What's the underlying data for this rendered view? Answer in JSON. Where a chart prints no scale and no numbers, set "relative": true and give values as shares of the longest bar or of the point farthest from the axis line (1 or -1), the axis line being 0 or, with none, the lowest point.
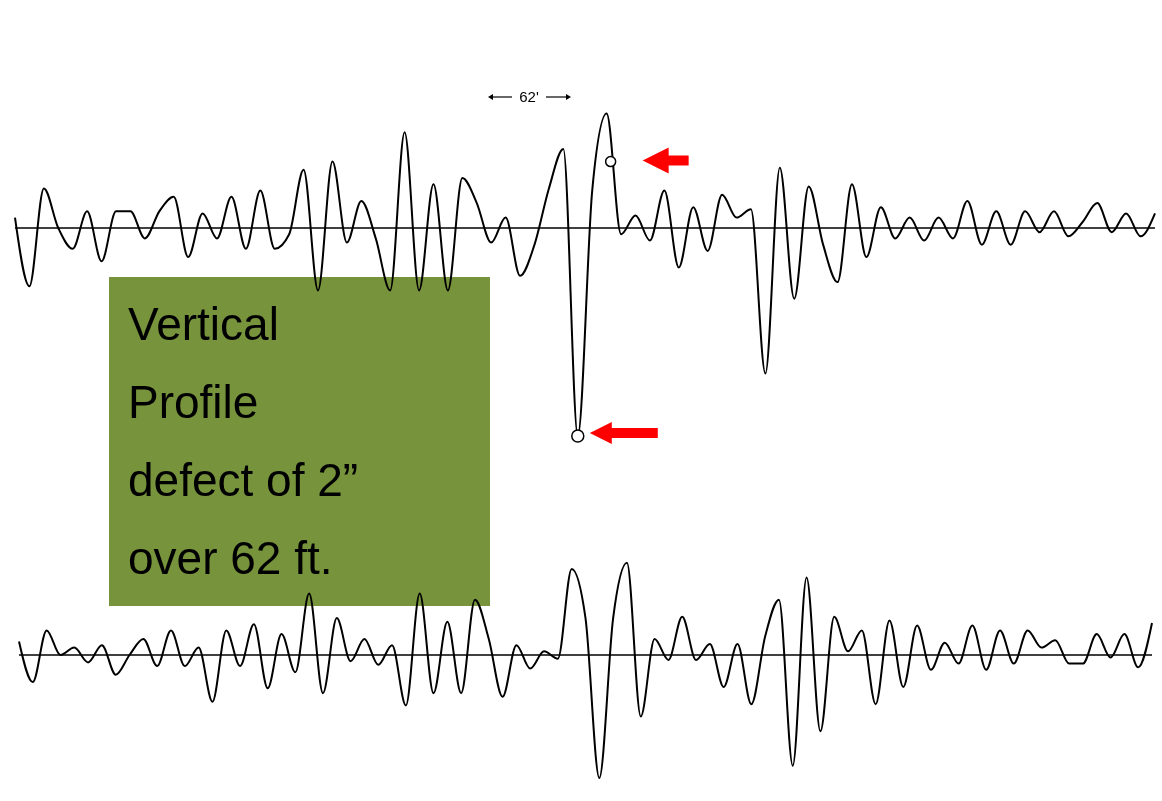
{
  "chart_data": [
    {
      "type": "line",
      "relative": true,
      "annotations": [
        "62'",
        "Vertical Profile defect of 2” over 62 ft."
      ],
      "categories": [
        null,
        null,
        null,
        null,
        null,
        null,
        null,
        null,
        null,
        null,
        null,
        null,
        null,
        null,
        null,
        null,
        null,
        null,
        null,
        null,
        null,
        null,
        null,
        null,
        null,
        null,
        null,
        null,
        null,
        null,
        null,
        null,
        null,
        null,
        null,
        null,
        null,
        null,
        null,
        null,
        null,
        null,
        null,
        null,
        null,
        null,
        null,
        null,
        null,
        null,
        null,
        null,
        null,
        null,
        null,
        null,
        null,
        null,
        null,
        null,
        null,
        null,
        null,
        null,
        null,
        null,
        null,
        null,
        null,
        null,
        null,
        null,
        null,
        null,
        null,
        null,
        null,
        null,
        null,
        null
      ],
      "series": [
        {
          "color": "#000000",
          "values": [
            0.05,
            -0.28,
            0.19,
            0,
            -0.1,
            0.08,
            -0.16,
            0.08,
            0.08,
            -0.05,
            0.08,
            0.15,
            -0.14,
            0.07,
            -0.05,
            0.15,
            -0.1,
            0.18,
            -0.1,
            -0.03,
            0.28,
            -0.3,
            0.32,
            -0.07,
            0.13,
            -0.05,
            -0.3,
            0.46,
            -0.3,
            0.21,
            -0.3,
            0.24,
            0.12,
            -0.07,
            0.05,
            -0.23,
            -0.08,
            0.19,
            0.38,
            -1,
            0.18,
            0.55,
            -0.03,
            0.06,
            -0.06,
            0.18,
            -0.19,
            0.1,
            -0.11,
            0.16,
            0.05,
            0.09,
            -0.7,
            0.29,
            -0.34,
            0.2,
            -0.08,
            -0.26,
            0.21,
            -0.14,
            0.1,
            -0.05,
            0.05,
            -0.06,
            0.05,
            -0.05,
            0.13,
            -0.08,
            0.08,
            -0.08,
            0.08,
            -0.02,
            0.08,
            -0.04,
            0.03,
            0.12,
            -0.02,
            0.07,
            -0.04,
            0.07
          ]
        }
      ]
    },
    {
      "type": "line",
      "relative": true,
      "categories": [
        null,
        null,
        null,
        null,
        null,
        null,
        null,
        null,
        null,
        null,
        null,
        null,
        null,
        null,
        null,
        null,
        null,
        null,
        null,
        null,
        null,
        null,
        null,
        null,
        null,
        null,
        null,
        null,
        null,
        null,
        null,
        null,
        null,
        null,
        null,
        null,
        null,
        null,
        null,
        null,
        null,
        null,
        null,
        null,
        null,
        null,
        null,
        null,
        null,
        null,
        null,
        null,
        null,
        null,
        null,
        null,
        null,
        null,
        null,
        null,
        null,
        null,
        null,
        null,
        null,
        null,
        null,
        null,
        null,
        null,
        null,
        null,
        null,
        null,
        null,
        null,
        null,
        null,
        null,
        null,
        null,
        null,
        null
      ],
      "series": [
        {
          "color": "#000000",
          "values": [
            0.11,
            -0.22,
            0.2,
            0,
            0.06,
            -0.06,
            0.08,
            -0.16,
            0,
            0.13,
            -0.09,
            0.2,
            -0.09,
            0.06,
            -0.38,
            0.2,
            -0.09,
            0.25,
            -0.27,
            0.17,
            -0.14,
            0.5,
            -0.31,
            0.3,
            -0.05,
            0.13,
            -0.08,
            0.08,
            -0.41,
            0.5,
            -0.31,
            0.27,
            -0.31,
            0.45,
            0.13,
            -0.34,
            0.08,
            -0.11,
            0.03,
            -0.03,
            0.7,
            0.3,
            -1,
            0.3,
            0.75,
            -0.5,
            0.13,
            -0.04,
            0.31,
            -0.04,
            0.09,
            -0.26,
            0.09,
            -0.4,
            0.15,
            0.45,
            -0.9,
            0.63,
            -0.62,
            0.31,
            0.03,
            0.2,
            -0.4,
            0.28,
            -0.26,
            0.24,
            -0.12,
            0.1,
            -0.07,
            0.24,
            -0.12,
            0.2,
            -0.07,
            0.2,
            0.06,
            0.12,
            -0.07,
            -0.07,
            0.17,
            -0.02,
            0.17,
            -0.1,
            0.26
          ]
        }
      ]
    }
  ]
}
